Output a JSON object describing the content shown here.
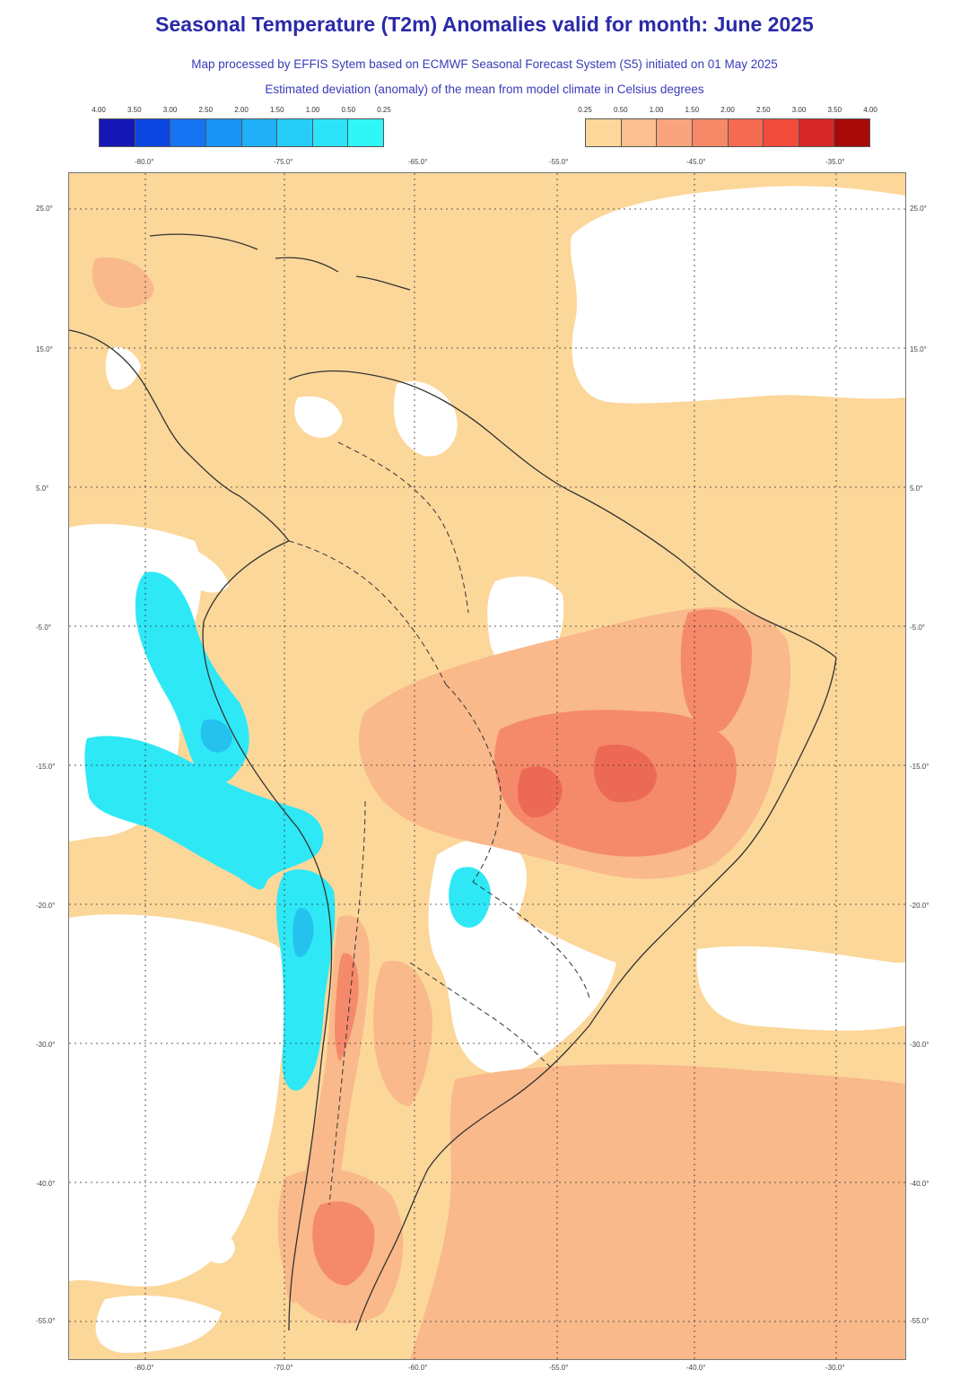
{
  "header": {
    "title": "Seasonal Temperature (T2m) Anomalies valid for month: June 2025",
    "subtitle_1": "Map processed by EFFIS Sytem based on ECMWF Seasonal Forecast System (S5) initiated on 01 May 2025",
    "subtitle_2": "Estimated deviation (anomaly) of the mean from model climate in Celsius degrees"
  },
  "legend": {
    "cold_labels": [
      "4.00",
      "3.50",
      "3.00",
      "2.50",
      "2.00",
      "1.50",
      "1.00",
      "0.50",
      "0.25"
    ],
    "cold_colors": [
      "#1616b4",
      "#0b46e0",
      "#1673f2",
      "#1a95f5",
      "#1fb0f7",
      "#25cdf8",
      "#2de3fa",
      "#30f6f8"
    ],
    "warm_labels": [
      "0.25",
      "0.50",
      "1.00",
      "1.50",
      "2.00",
      "2.50",
      "3.00",
      "3.50",
      "4.00"
    ],
    "warm_colors": [
      "#fcd79a",
      "#fbbf90",
      "#f9a47c",
      "#f78868",
      "#f56a52",
      "#f24c3c",
      "#d82828",
      "#a80a0a"
    ]
  },
  "axes": {
    "top_lon": [
      "-80.0°",
      "-75.0°",
      "-65.0°",
      "-55.0°",
      "-45.0°",
      "-35.0°"
    ],
    "bottom_lon": [
      "-80.0°",
      "-70.0°",
      "-60.0°",
      "-55.0°",
      "-40.0°",
      "-30.0°"
    ],
    "lat_left": [
      "25.0°",
      "15.0°",
      "5.0°",
      "-5.0°",
      "-15.0°",
      "-20.0°",
      "-30.0°",
      "-40.0°",
      "-55.0°"
    ],
    "lat_right": [
      "25.0°",
      "15.0°",
      "5.0°",
      "-5.0°",
      "-15.0°",
      "-20.0°",
      "-30.0°",
      "-40.0°",
      "-55.0°"
    ]
  },
  "colors": {
    "neutral": "#ffffff",
    "warm_light": "#fcd79a",
    "warm_mid": "#f9b98a",
    "warm_strong": "#f58a6a",
    "warm_max": "#ec6a55",
    "cold_light": "#2ee8f6",
    "cold_mid": "#25c2ee",
    "boundary": "#333333"
  }
}
